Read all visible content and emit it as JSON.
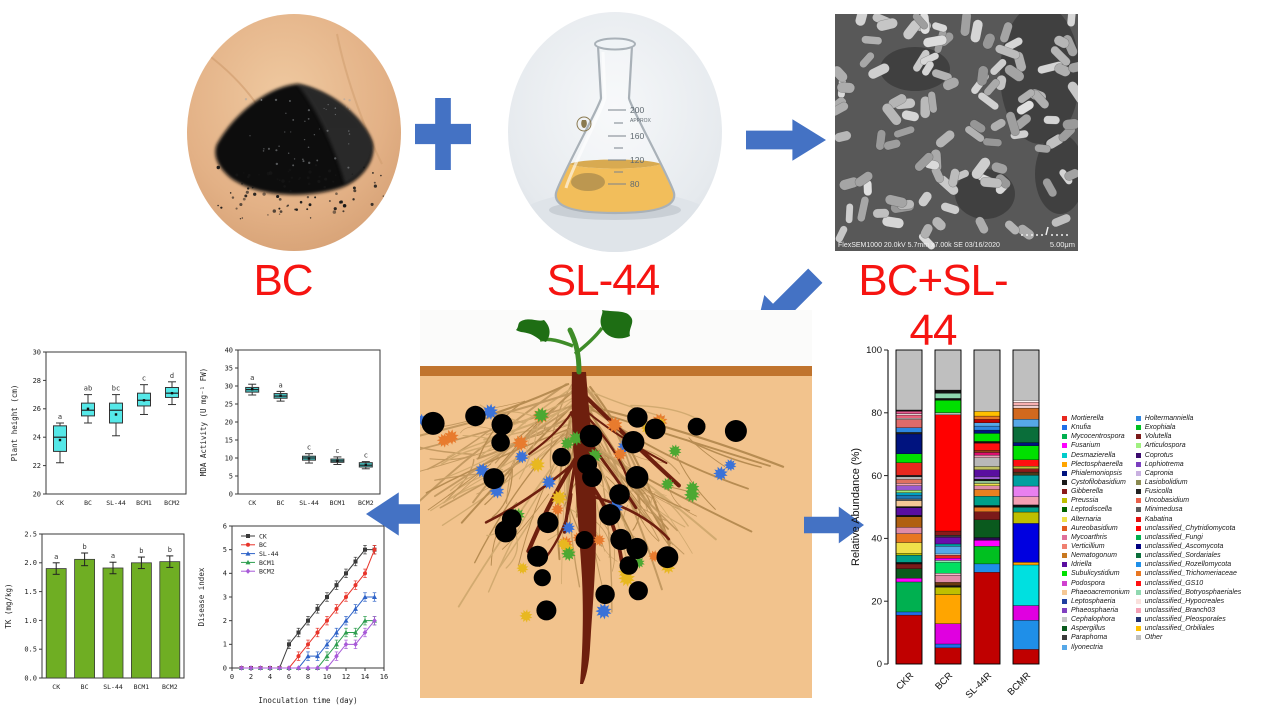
{
  "header": {
    "bc_label": "BC",
    "sl44_label": "SL-44",
    "bc_sl44_label": "BC+SL-44"
  },
  "sem": {
    "caption_left": "FlexSEM1000 20.0kV 5.7mm x7.00k SE 03/16/2020",
    "scale_label": "5.00μm"
  },
  "flask": {
    "marks": [
      "200",
      "APPROX",
      "160",
      "120",
      "80"
    ]
  },
  "colors": {
    "arrow_blue": "#4472C4",
    "label_red": "#f61411",
    "box_cyan": "#55E8E8",
    "box_teal": "#45C8C8",
    "bar_green": "#6FAE23"
  },
  "illustration": {
    "biochar_particle_color": "#000000",
    "microbe_colors": [
      "#3B72D8",
      "#E87B2E",
      "#E8B820",
      "#4CA832"
    ]
  },
  "chart_data": [
    {
      "id": "plant_height",
      "type": "box",
      "categories": [
        "CK",
        "BC",
        "SL-44",
        "BCM1",
        "BCM2"
      ],
      "ylabel": "Plant height (cm)",
      "ylim": [
        20,
        30
      ],
      "ytick": 2,
      "box_fill": "#55E8E8",
      "boxes": [
        {
          "low": 22.2,
          "q1": 23.0,
          "median": 24.0,
          "q3": 24.8,
          "high": 25.0,
          "mean": 23.8,
          "letter": "a"
        },
        {
          "low": 25.0,
          "q1": 25.5,
          "median": 25.9,
          "q3": 26.4,
          "high": 27.0,
          "mean": 26.0,
          "letter": "ab"
        },
        {
          "low": 24.1,
          "q1": 25.0,
          "median": 25.9,
          "q3": 26.4,
          "high": 27.0,
          "mean": 25.6,
          "letter": "bc"
        },
        {
          "low": 25.6,
          "q1": 26.2,
          "median": 26.6,
          "q3": 27.1,
          "high": 27.7,
          "mean": 26.6,
          "letter": "c"
        },
        {
          "low": 26.3,
          "q1": 26.8,
          "median": 27.1,
          "q3": 27.5,
          "high": 27.9,
          "mean": 27.1,
          "letter": "d"
        }
      ]
    },
    {
      "id": "mda",
      "type": "box",
      "categories": [
        "CK",
        "BC",
        "SL-44",
        "BCM1",
        "BCM2"
      ],
      "ylabel": "MDA Activity (U mg⁻¹ FW)",
      "ylim": [
        0,
        40
      ],
      "ytick": 5,
      "box_fill": "#45C8C8",
      "boxes": [
        {
          "low": 27.5,
          "q1": 28.3,
          "median": 29.0,
          "q3": 29.6,
          "high": 30.5,
          "mean": 29.1,
          "letter": "a"
        },
        {
          "low": 25.8,
          "q1": 26.6,
          "median": 27.2,
          "q3": 27.9,
          "high": 28.5,
          "mean": 27.3,
          "letter": "a"
        },
        {
          "low": 8.6,
          "q1": 9.4,
          "median": 10.0,
          "q3": 10.5,
          "high": 11.2,
          "mean": 9.9,
          "letter": "c"
        },
        {
          "low": 8.2,
          "q1": 8.8,
          "median": 9.2,
          "q3": 9.7,
          "high": 10.3,
          "mean": 9.2,
          "letter": "c"
        },
        {
          "low": 7.0,
          "q1": 7.5,
          "median": 8.0,
          "q3": 8.7,
          "high": 9.0,
          "mean": 8.1,
          "letter": "c"
        }
      ]
    },
    {
      "id": "tk",
      "type": "bar",
      "categories": [
        "CK",
        "BC",
        "SL-44",
        "BCM1",
        "BCM2"
      ],
      "ylabel": "TK (mg/kg)",
      "ylim": [
        0,
        2.5
      ],
      "ytick": 0.5,
      "bar_fill": "#6FAE23",
      "values": [
        1.9,
        2.06,
        1.91,
        2.0,
        2.02
      ],
      "errors": [
        0.1,
        0.11,
        0.1,
        0.1,
        0.1
      ],
      "letters": [
        "a",
        "b",
        "a",
        "b",
        "b"
      ]
    },
    {
      "id": "disease",
      "type": "line",
      "xlabel": "Inoculation time (day)",
      "ylabel": "Disease index",
      "xlim": [
        0,
        16
      ],
      "xtick": 2,
      "ylim": [
        0,
        6
      ],
      "ytick": 1,
      "x": [
        1,
        2,
        3,
        4,
        5,
        6,
        7,
        8,
        9,
        10,
        11,
        12,
        13,
        14,
        15
      ],
      "error": 0.18,
      "legend_position": "top-left",
      "series": [
        {
          "name": "CK",
          "color": "#3A3A3A",
          "marker": "square",
          "values": [
            0,
            0,
            0,
            0,
            0,
            1,
            1.5,
            2,
            2.5,
            3,
            3.5,
            4,
            4.5,
            5,
            5
          ]
        },
        {
          "name": "BC",
          "color": "#E8342A",
          "marker": "circle",
          "values": [
            0,
            0,
            0,
            0,
            0,
            0,
            0.5,
            1,
            1.5,
            2,
            2.5,
            3,
            3.5,
            4,
            5
          ]
        },
        {
          "name": "SL-44",
          "color": "#2E63C8",
          "marker": "triangle",
          "values": [
            0,
            0,
            0,
            0,
            0,
            0,
            0,
            0.5,
            0.5,
            1,
            1.5,
            2,
            2.5,
            3,
            3
          ]
        },
        {
          "name": "BCM1",
          "color": "#2E9E4F",
          "marker": "triangle",
          "values": [
            0,
            0,
            0,
            0,
            0,
            0,
            0,
            0,
            0,
            0.5,
            1,
            1.5,
            1.5,
            2,
            2
          ]
        },
        {
          "name": "BCM2",
          "color": "#A85AD8",
          "marker": "diamond",
          "values": [
            0,
            0,
            0,
            0,
            0,
            0,
            0,
            0,
            0,
            0,
            0.5,
            1,
            1,
            1.5,
            2
          ]
        }
      ]
    },
    {
      "id": "abundance",
      "type": "stacked_bar",
      "ylabel": "Relative Abundance (%)",
      "ylim": [
        0,
        100
      ],
      "ytick": 20,
      "categories": [
        "CKR",
        "BCR",
        "SL-44R",
        "BCMR"
      ],
      "segments": [
        [
          [
            "#C00000",
            15.5
          ],
          [
            "#1F6FE8",
            1
          ],
          [
            "#00B050",
            9.5
          ],
          [
            "#FF00FF",
            1.2
          ],
          [
            "#0A5A1E",
            3
          ],
          [
            "#7B1A1A",
            1.5
          ],
          [
            "#111111",
            0.5
          ],
          [
            "#00A08A",
            2.3
          ],
          [
            "#BFBF00",
            0.6
          ],
          [
            "#F0E04A",
            3.4
          ],
          [
            "#E87722",
            2.8
          ],
          [
            "#E08CA8",
            2
          ],
          [
            "#B06010",
            3.4
          ],
          [
            "#111111",
            0.4
          ],
          [
            "#5A0EA0",
            2.4
          ],
          [
            "#111111",
            0.4
          ],
          [
            "#F5C896",
            1.8
          ],
          [
            "#707070",
            0.6
          ],
          [
            "#1F78B4",
            1.2
          ],
          [
            "#00A0C0",
            0.8
          ],
          [
            "#A0E878",
            0.8
          ],
          [
            "#9B59D0",
            1.4
          ],
          [
            "#F4A0B4",
            0.8
          ],
          [
            "#E07060",
            1.2
          ],
          [
            "#B8B8B8",
            0.8
          ],
          [
            "#222222",
            0.5
          ],
          [
            "#E8281E",
            4
          ],
          [
            "#00E000",
            2.8
          ],
          [
            "#00137F",
            6.3
          ],
          [
            "#222222",
            0.5
          ],
          [
            "#2E86E0",
            1.5
          ],
          [
            "#E06A6A",
            2.6
          ],
          [
            "#F8F8F8",
            0.4
          ],
          [
            "#E8647E",
            1
          ],
          [
            "#FFF5F5",
            0.4
          ],
          [
            "#E85A90",
            0.8
          ],
          [
            "#111111",
            0.4
          ],
          [
            "#BFBFBF",
            19
          ]
        ],
        [
          [
            "#C00000",
            5
          ],
          [
            "#1F6FE8",
            1.2
          ],
          [
            "#E000E0",
            6.3
          ],
          [
            "#FFA500",
            9
          ],
          [
            "#BFBF00",
            2.3
          ],
          [
            "#111111",
            0.5
          ],
          [
            "#6B3A10",
            1
          ],
          [
            "#E08CA8",
            2.2
          ],
          [
            "#F4B8C8",
            0.6
          ],
          [
            "#00E060",
            3.4
          ],
          [
            "#90E8B0",
            0.6
          ],
          [
            "#FF00FF",
            0.7
          ],
          [
            "#E8281E",
            0.9
          ],
          [
            "#D8D8D8",
            0.4
          ],
          [
            "#56A8E8",
            2.4
          ],
          [
            "#00A0A0",
            0.7
          ],
          [
            "#6A0DAD",
            2.1
          ],
          [
            "#3A3A3A",
            0.6
          ],
          [
            "#8B1A1A",
            1.3
          ],
          [
            "#FF0000",
            36
          ],
          [
            "#B8B8B8",
            0.7
          ],
          [
            "#00E000",
            3.8
          ],
          [
            "#111111",
            0.6
          ],
          [
            "#8FD8B0",
            1.6
          ],
          [
            "#111111",
            1.0
          ],
          [
            "#BFBFBF",
            12.4
          ]
        ],
        [
          [
            "#C00000",
            27.5
          ],
          [
            "#1F8FE8",
            2.5
          ],
          [
            "#00C020",
            5.3
          ],
          [
            "#FF00FF",
            1.8
          ],
          [
            "#2A0A50",
            0.8
          ],
          [
            "#0A5A1E",
            5.3
          ],
          [
            "#7B1A1A",
            2.4
          ],
          [
            "#E87722",
            1.4
          ],
          [
            "#111111",
            0.5
          ],
          [
            "#00A08A",
            2.8
          ],
          [
            "#E88020",
            2
          ],
          [
            "#E08CA8",
            1.1
          ],
          [
            "#F0E04A",
            0.7
          ],
          [
            "#8FBC8F",
            0.8
          ],
          [
            "#111111",
            0.5
          ],
          [
            "#9B59D0",
            0.8
          ],
          [
            "#5A0EA0",
            2
          ],
          [
            "#BFBF60",
            1
          ],
          [
            "#B8B8B8",
            2.6
          ],
          [
            "#E8A0B8",
            0.8
          ],
          [
            "#E01070",
            0.8
          ],
          [
            "#8B4513",
            0.6
          ],
          [
            "#FF1010",
            2.2
          ],
          [
            "#111111",
            0.5
          ],
          [
            "#00E000",
            2.4
          ],
          [
            "#00137F",
            1
          ],
          [
            "#2E86E0",
            1.2
          ],
          [
            "#56A8E8",
            1
          ],
          [
            "#C00000",
            1
          ],
          [
            "#E87722",
            1
          ],
          [
            "#FFC000",
            1.4
          ],
          [
            "#BFBFBF",
            18.4
          ]
        ],
        [
          [
            "#C00000",
            4.5
          ],
          [
            "#1F8FE8",
            9
          ],
          [
            "#E000E0",
            4.5
          ],
          [
            "#00E0E0",
            12.5
          ],
          [
            "#FFA500",
            0.8
          ],
          [
            "#0000E0",
            12
          ],
          [
            "#BFBF00",
            3.5
          ],
          [
            "#00A08A",
            1.5
          ],
          [
            "#111111",
            0.7
          ],
          [
            "#F4A0B4",
            2.5
          ],
          [
            "#E880F0",
            3.3
          ],
          [
            "#00A0A0",
            3.3
          ],
          [
            "#4A3A1A",
            1
          ],
          [
            "#8B1A1A",
            1
          ],
          [
            "#BFBF30",
            0.8
          ],
          [
            "#FF1010",
            2
          ],
          [
            "#00E000",
            4.3
          ],
          [
            "#00137F",
            1
          ],
          [
            "#0A6E3A",
            4.8
          ],
          [
            "#56A8E8",
            2.4
          ],
          [
            "#D2691E",
            3.4
          ],
          [
            "#F0D0D0",
            0.8
          ],
          [
            "#F8B0B0",
            1
          ],
          [
            "#FFF5F5",
            0.6
          ],
          [
            "#BFBFBF",
            15.5
          ]
        ]
      ],
      "legend_columns": [
        [
          {
            "label": "Mortierella",
            "color": "#E8281E"
          },
          {
            "label": "Knufia",
            "color": "#1F6FE8"
          },
          {
            "label": "Mycocentrospora",
            "color": "#00B050"
          },
          {
            "label": "Fusarium",
            "color": "#FF00FF"
          },
          {
            "label": "Desmazierella",
            "color": "#00CCCC"
          },
          {
            "label": "Plectosphaerella",
            "color": "#FFA500"
          },
          {
            "label": "Phialemoniopsis",
            "color": "#00137F"
          },
          {
            "label": "Cystofilobasidium",
            "color": "#1A1A1A"
          },
          {
            "label": "Gibberella",
            "color": "#8B1A1A"
          },
          {
            "label": "Preussia",
            "color": "#BFBF00"
          },
          {
            "label": "Leptodiscella",
            "color": "#006400"
          },
          {
            "label": "Alternaria",
            "color": "#F0E04A"
          },
          {
            "label": "Aureobasidium",
            "color": "#E05A1E"
          },
          {
            "label": "Mycoarthris",
            "color": "#E0709A"
          },
          {
            "label": "Verticillium",
            "color": "#F08070"
          },
          {
            "label": "Nematogonum",
            "color": "#C87820"
          },
          {
            "label": "Idriella",
            "color": "#5A0EA0"
          },
          {
            "label": "Subulicystidium",
            "color": "#00E000"
          },
          {
            "label": "Podospora",
            "color": "#D040D0"
          },
          {
            "label": "Phaeoacremonium",
            "color": "#F5C896"
          },
          {
            "label": "Leptosphaeria",
            "color": "#1F3FA0"
          },
          {
            "label": "Phaeosphaeria",
            "color": "#8040C0"
          },
          {
            "label": "Cephalophora",
            "color": "#C8C8C8"
          },
          {
            "label": "Aspergillus",
            "color": "#0A5A1E"
          },
          {
            "label": "Paraphoma",
            "color": "#3A3A3A"
          },
          {
            "label": "Ilyonectria",
            "color": "#56A8E8"
          }
        ],
        [
          {
            "label": "Holtermanniella",
            "color": "#2E86E0"
          },
          {
            "label": "Exophiala",
            "color": "#00C020"
          },
          {
            "label": "Volutella",
            "color": "#7B1A1A"
          },
          {
            "label": "Articulospora",
            "color": "#A0F080"
          },
          {
            "label": "Coprotus",
            "color": "#3A0A6E"
          },
          {
            "label": "Lophiotrema",
            "color": "#7B3FBF"
          },
          {
            "label": "Capronia",
            "color": "#C8B0E0"
          },
          {
            "label": "Lasiobolidium",
            "color": "#8A8A50"
          },
          {
            "label": "Fusicolla",
            "color": "#222222"
          },
          {
            "label": "Uncobasidium",
            "color": "#E8604A"
          },
          {
            "label": "Minimedusa",
            "color": "#5A5A5A"
          },
          {
            "label": "Kabatina",
            "color": "#E01010"
          },
          {
            "label": "unclassified_Chytridiomycota",
            "color": "#FF0000"
          },
          {
            "label": "unclassified_Fungi",
            "color": "#00B050"
          },
          {
            "label": "unclassified_Ascomycota",
            "color": "#000080"
          },
          {
            "label": "unclassified_Sordariales",
            "color": "#0A6E3A"
          },
          {
            "label": "unclassified_Rozellomycota",
            "color": "#1F8FE8"
          },
          {
            "label": "unclassified_Trichomeriaceae",
            "color": "#E87722"
          },
          {
            "label": "unclassified_GS10",
            "color": "#FF1010"
          },
          {
            "label": "unclassified_Botryosphaeriales",
            "color": "#8FD8B0"
          },
          {
            "label": "unclassified_Hypocreales",
            "color": "#FAE0DC"
          },
          {
            "label": "unclassified_Branch03",
            "color": "#F4A0B4"
          },
          {
            "label": "unclassified_Pleosporales",
            "color": "#203070"
          },
          {
            "label": "unclassified_Orbiliales",
            "color": "#FFC000"
          },
          {
            "label": "Other",
            "color": "#BFBFBF"
          }
        ]
      ]
    }
  ]
}
